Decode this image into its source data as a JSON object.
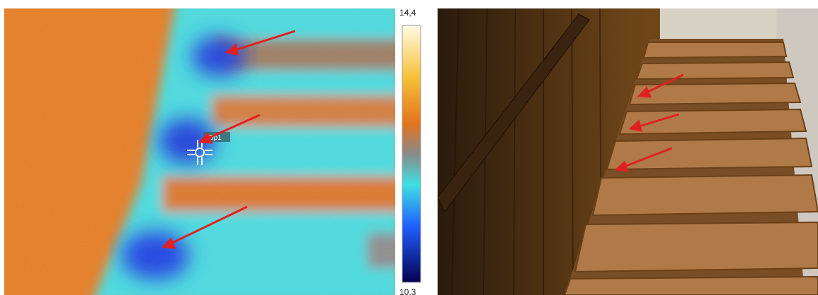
{
  "thermal": {
    "scale_max": "14,4",
    "scale_min": "10,3",
    "spot_label": "Sp1"
  }
}
